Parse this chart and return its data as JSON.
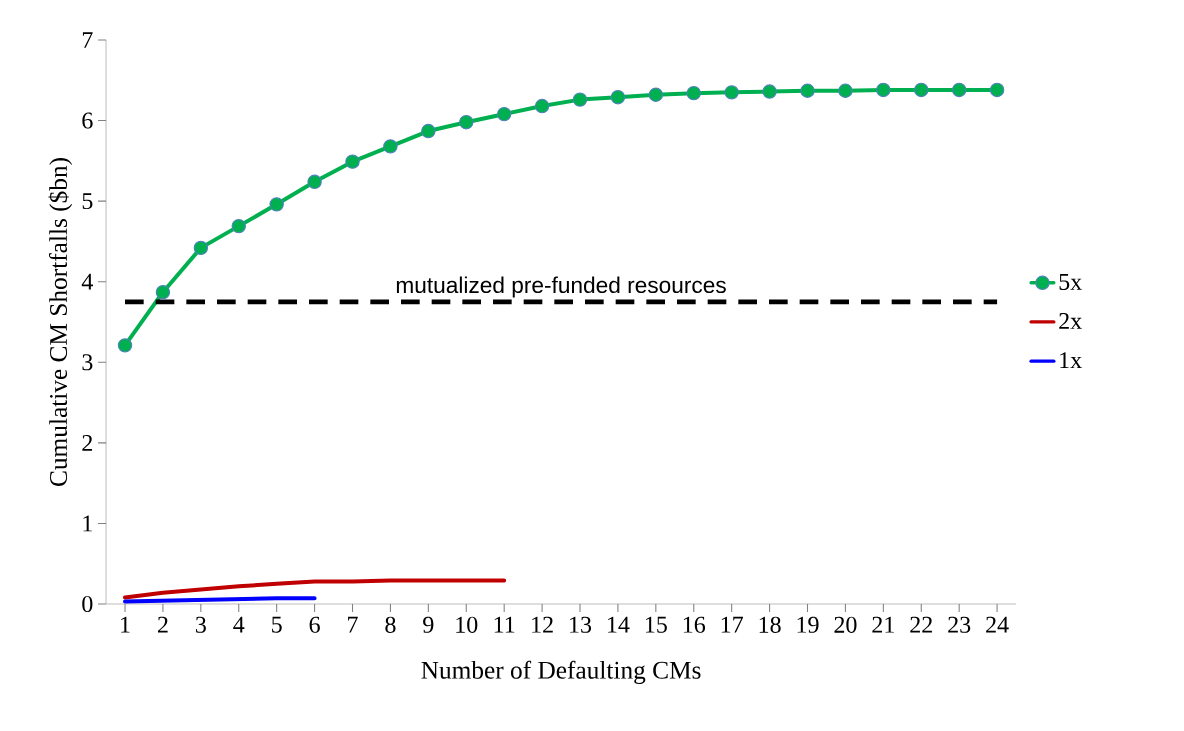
{
  "chart_data": {
    "type": "line",
    "xlabel": "Number of Defaulting CMs",
    "ylabel": "Cumulative CM Shortfalls ($bn)",
    "categories": [
      "1",
      "2",
      "3",
      "4",
      "5",
      "6",
      "7",
      "8",
      "9",
      "10",
      "11",
      "12",
      "13",
      "14",
      "15",
      "16",
      "17",
      "18",
      "19",
      "20",
      "21",
      "22",
      "23",
      "24"
    ],
    "series": [
      {
        "name": "5x",
        "color": "#00b050",
        "marker": "circle",
        "values": [
          3.21,
          3.87,
          4.42,
          4.69,
          4.96,
          5.24,
          5.49,
          5.68,
          5.87,
          5.98,
          6.08,
          6.18,
          6.26,
          6.29,
          6.32,
          6.34,
          6.35,
          6.36,
          6.37,
          6.37,
          6.38,
          6.38,
          6.38,
          6.38
        ]
      },
      {
        "name": "2x",
        "color": "#c00000",
        "marker": "none",
        "values": [
          0.08,
          0.14,
          0.18,
          0.22,
          0.25,
          0.28,
          0.28,
          0.29,
          0.29,
          0.29,
          0.29,
          null,
          null,
          null,
          null,
          null,
          null,
          null,
          null,
          null,
          null,
          null,
          null,
          null
        ]
      },
      {
        "name": "1x",
        "color": "#0000ff",
        "marker": "none",
        "values": [
          0.03,
          0.04,
          0.05,
          0.06,
          0.07,
          0.07,
          null,
          null,
          null,
          null,
          null,
          null,
          null,
          null,
          null,
          null,
          null,
          null,
          null,
          null,
          null,
          null,
          null,
          null
        ]
      }
    ],
    "ylim": [
      0,
      7
    ],
    "yticks": [
      0,
      1,
      2,
      3,
      4,
      5,
      6,
      7
    ],
    "ref_lines": [
      {
        "axis": "y",
        "value": 3.75,
        "label": "mutualized pre-funded resources",
        "color": "#000000",
        "line_style": "dashed"
      }
    ],
    "grid": false,
    "legend": "right",
    "line_style": "solid"
  }
}
